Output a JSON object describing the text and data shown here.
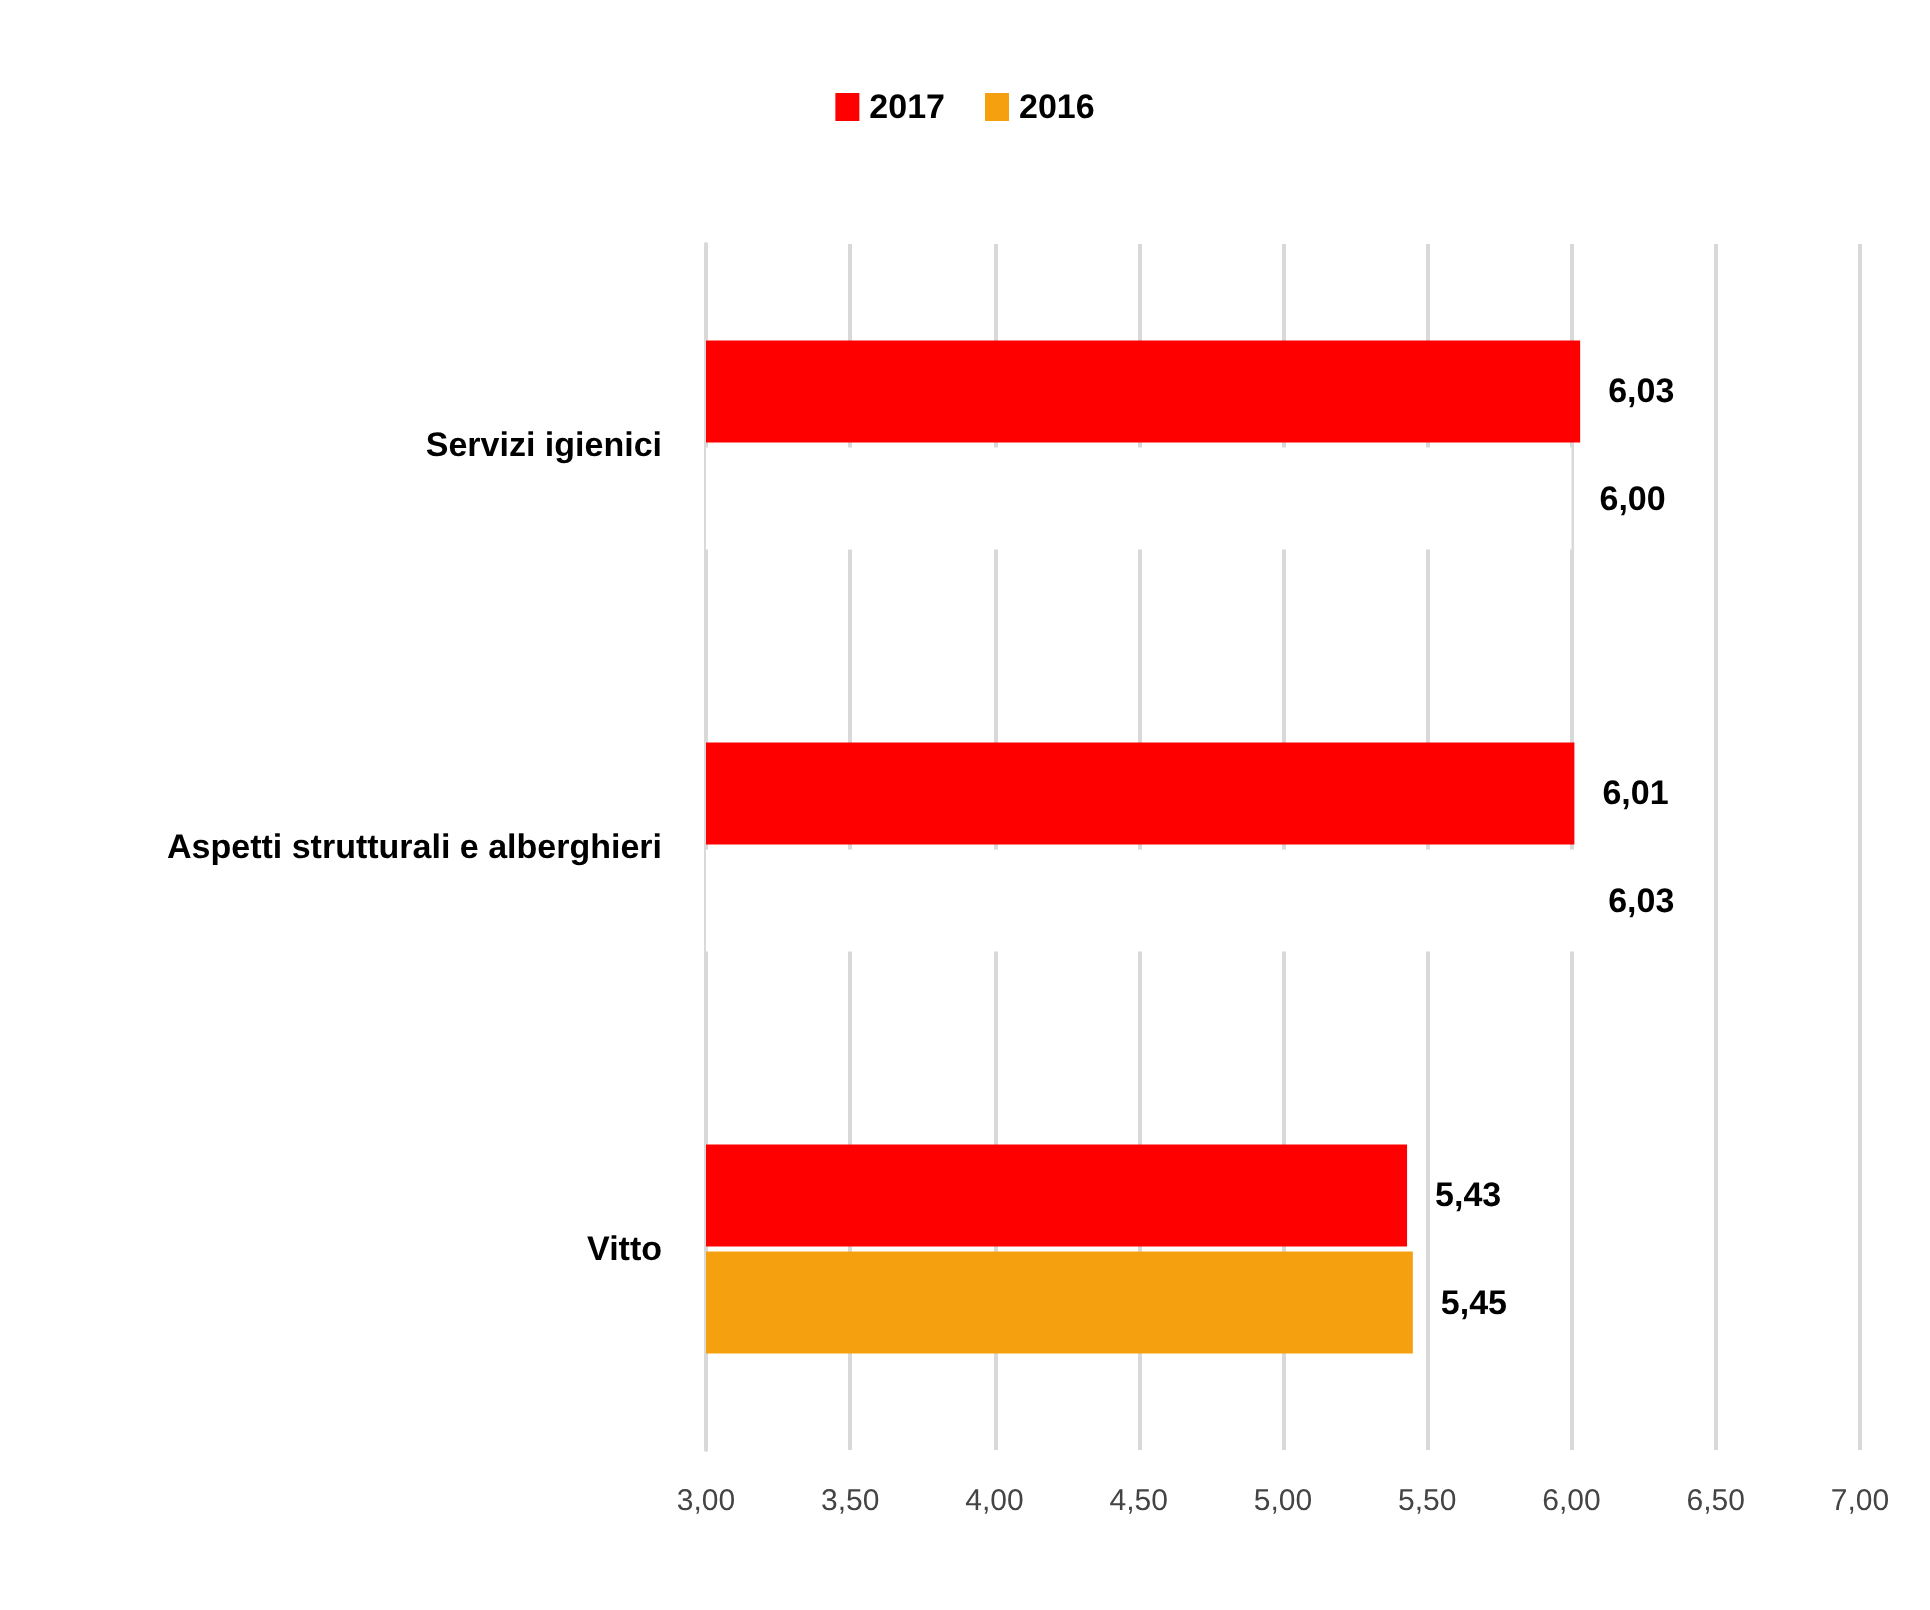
{
  "chart_data": {
    "type": "bar",
    "orientation": "horizontal",
    "categories": [
      "Servizi igienici",
      "Aspetti strutturali e alberghieri",
      "Vitto"
    ],
    "series": [
      {
        "name": "2017",
        "color": "#ff0000",
        "values": [
          6.03,
          6.01,
          5.43
        ],
        "value_labels": [
          "6,03",
          "6,01",
          "5,43"
        ]
      },
      {
        "name": "2016",
        "color": "#f5a00f",
        "colors": [
          "#ffffff",
          "#ffffff",
          "#f5a00f"
        ],
        "values": [
          6.0,
          6.03,
          5.45
        ],
        "value_labels": [
          "6,00",
          "6,03",
          "5,45"
        ]
      }
    ],
    "xlim": [
      3,
      7
    ],
    "xticks": [
      {
        "value": 3,
        "label": "3,00"
      },
      {
        "value": 3.5,
        "label": "3,50"
      },
      {
        "value": 4,
        "label": "4,00"
      },
      {
        "value": 4.5,
        "label": "4,50"
      },
      {
        "value": 5,
        "label": "5,00"
      },
      {
        "value": 5.5,
        "label": "5,50"
      },
      {
        "value": 6,
        "label": "6,00"
      },
      {
        "value": 6.5,
        "label": "6,50"
      },
      {
        "value": 7,
        "label": "7,00"
      }
    ],
    "grid": "x",
    "legend": "top"
  }
}
